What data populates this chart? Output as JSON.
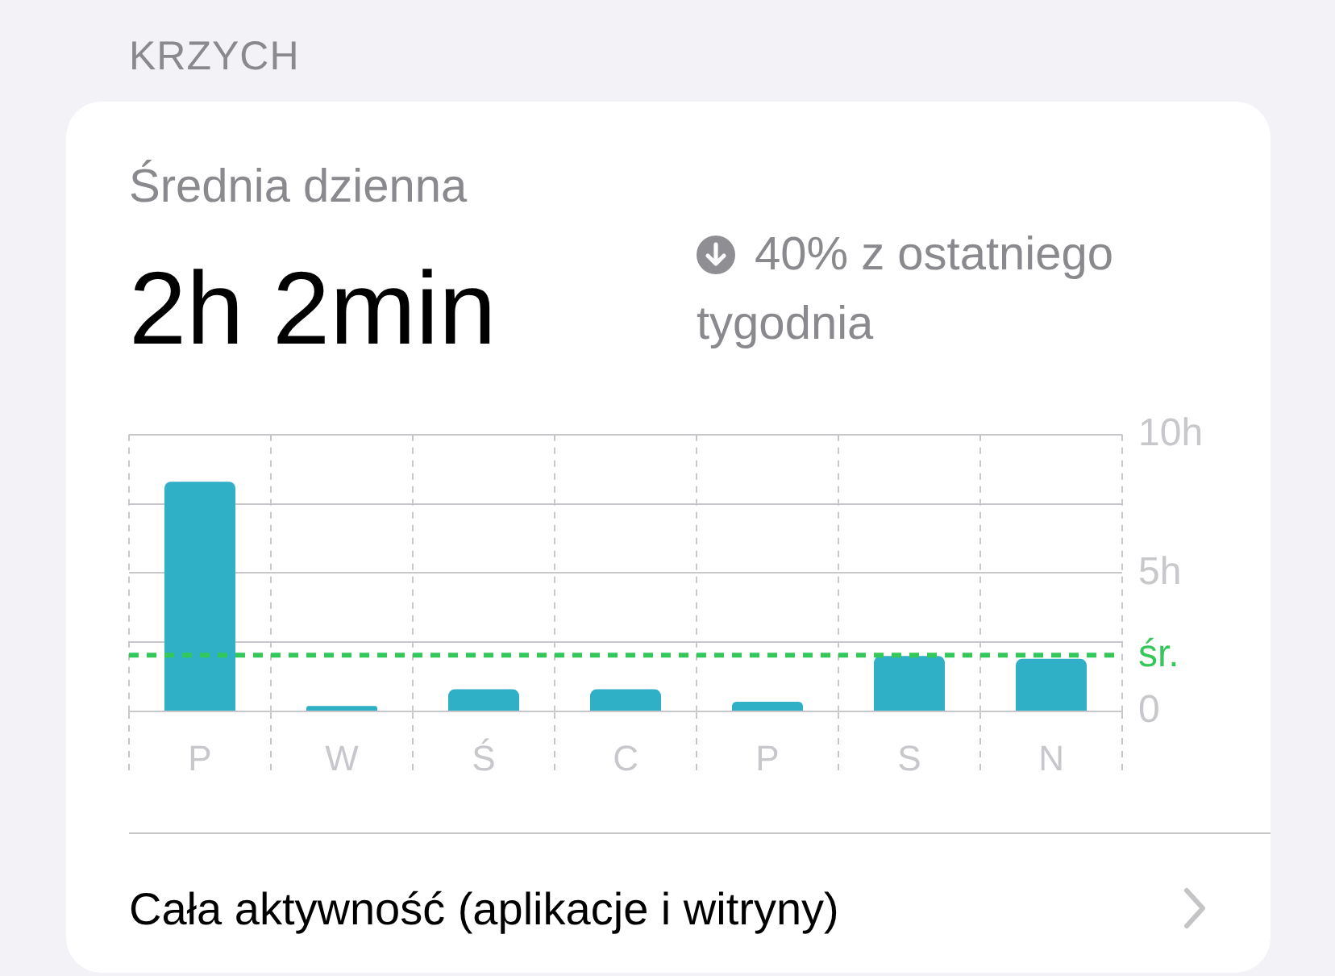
{
  "chart_data": {
    "type": "bar",
    "title": "KRZYCH",
    "annotations": [
      "Średnia dzienna",
      "2h 2min",
      "40% z ostatniego tygodnia",
      "Cała aktywność (aplikacje i witryny)"
    ],
    "categories": [
      "P",
      "W",
      "Ś",
      "C",
      "P",
      "S",
      "N"
    ],
    "values": [
      8.3,
      0.2,
      0.8,
      0.8,
      0.35,
      2.0,
      1.9
    ],
    "color": "#30b0c7",
    "ylim": [
      0,
      10
    ],
    "yticks": [
      0,
      {
        "value": 2.5,
        "label": null
      },
      {
        "value": 5,
        "label": "5h"
      },
      {
        "value": 7.5,
        "label": null
      },
      {
        "value": 10,
        "label": "10h"
      }
    ],
    "grid": true,
    "ref_lines": [
      {
        "axis": "y",
        "value": 2.03,
        "label": "śr.",
        "color": "#34c759",
        "line_style": "dashed"
      }
    ]
  }
}
